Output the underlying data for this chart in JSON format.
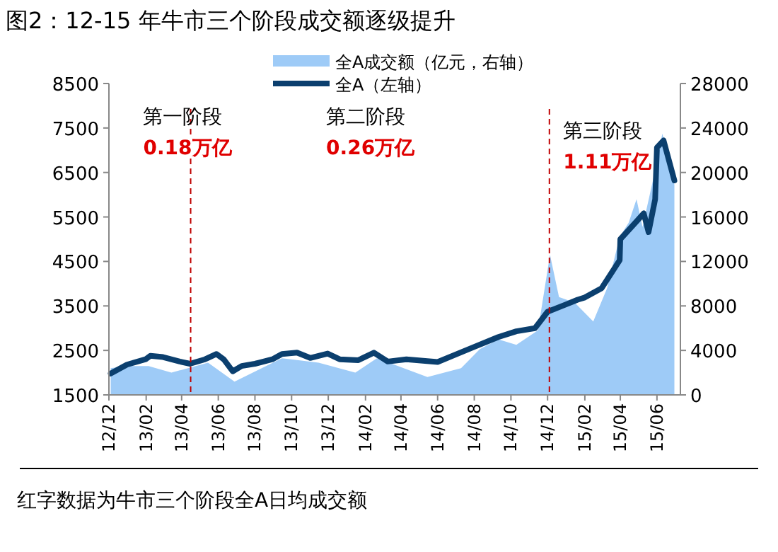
{
  "chart_data": {
    "type": "line",
    "title": "图2：12-15 年牛市三个阶段成交额逐级提升",
    "series": [
      {
        "name": "全A成交额（亿元，右轴）",
        "type": "area",
        "axis": "y2",
        "color": "#9ecbf7",
        "x": [
          "2012-12-04",
          "2012-12-31",
          "2013-02-05",
          "2013-03-15",
          "2013-05-15",
          "2013-06-28",
          "2013-09-15",
          "2013-11-15",
          "2014-01-15",
          "2014-02-20",
          "2014-05-15",
          "2014-07-10",
          "2014-08-10",
          "2014-09-10",
          "2014-10-10",
          "2014-11-15",
          "2014-12-05",
          "2014-12-20",
          "2015-01-15",
          "2015-02-15",
          "2015-03-10",
          "2015-03-31",
          "2015-04-15",
          "2015-04-28",
          "2015-05-08",
          "2015-05-27",
          "2015-06-10",
          "2015-06-30"
        ],
        "values": [
          2400,
          2600,
          2600,
          2000,
          2900,
          1200,
          3300,
          2900,
          2000,
          3300,
          1600,
          2400,
          4100,
          5000,
          4500,
          5800,
          12600,
          8800,
          8300,
          6600,
          9600,
          14200,
          15500,
          17600,
          15100,
          19700,
          23500,
          18900
        ]
      },
      {
        "name": "全A（左轴）",
        "color": "#0b3f6e",
        "x": [
          "2012-12-04",
          "2012-12-31",
          "2013-01-31",
          "2013-02-08",
          "2013-03-01",
          "2013-03-29",
          "2013-04-15",
          "2013-05-10",
          "2013-05-29",
          "2013-06-10",
          "2013-06-25",
          "2013-07-10",
          "2013-08-01",
          "2013-08-30",
          "2013-09-15",
          "2013-10-10",
          "2013-11-01",
          "2013-11-30",
          "2013-12-20",
          "2014-01-20",
          "2014-02-15",
          "2014-03-10",
          "2014-04-10",
          "2014-06-01",
          "2014-08-01",
          "2014-09-10",
          "2014-10-10",
          "2014-11-10",
          "2014-12-01",
          "2014-12-31",
          "2015-01-20",
          "2015-02-01",
          "2015-03-01",
          "2015-03-31",
          "2015-04-01",
          "2015-04-30",
          "2015-05-10",
          "2015-05-18",
          "2015-05-29",
          "2015-06-01",
          "2015-06-12",
          "2015-06-30"
        ],
        "values": [
          1980,
          2180,
          2300,
          2380,
          2350,
          2250,
          2200,
          2300,
          2420,
          2300,
          2030,
          2150,
          2200,
          2300,
          2420,
          2450,
          2330,
          2430,
          2300,
          2280,
          2450,
          2250,
          2300,
          2240,
          2580,
          2800,
          2930,
          3000,
          3370,
          3530,
          3640,
          3690,
          3900,
          4530,
          5000,
          5430,
          5580,
          5160,
          5900,
          7060,
          7220,
          6320
        ]
      }
    ],
    "xlim": [
      "2012-12-01",
      "2015-07-10"
    ],
    "xticks": [
      {
        "value": "2012-12-01",
        "label": "12/12"
      },
      {
        "value": "2013-02-01",
        "label": "13/02"
      },
      {
        "value": "2013-04-01",
        "label": "13/04"
      },
      {
        "value": "2013-06-01",
        "label": "13/06"
      },
      {
        "value": "2013-08-01",
        "label": "13/08"
      },
      {
        "value": "2013-10-01",
        "label": "13/10"
      },
      {
        "value": "2013-12-01",
        "label": "13/12"
      },
      {
        "value": "2014-02-01",
        "label": "14/02"
      },
      {
        "value": "2014-04-01",
        "label": "14/04"
      },
      {
        "value": "2014-06-01",
        "label": "14/06"
      },
      {
        "value": "2014-08-01",
        "label": "14/08"
      },
      {
        "value": "2014-10-01",
        "label": "14/10"
      },
      {
        "value": "2014-12-01",
        "label": "14/12"
      },
      {
        "value": "2015-02-01",
        "label": "15/02"
      },
      {
        "value": "2015-04-01",
        "label": "15/04"
      },
      {
        "value": "2015-06-01",
        "label": "15/06"
      }
    ],
    "ylim": [
      1500,
      8500
    ],
    "yticks": [
      1500,
      2500,
      3500,
      4500,
      5500,
      6500,
      7500,
      8500
    ],
    "y2lim": [
      0,
      28000
    ],
    "y2ticks": [
      0,
      4000,
      8000,
      12000,
      16000,
      20000,
      24000,
      28000
    ],
    "ref_lines": [
      {
        "axis": "x",
        "value": "2013-04-16",
        "color": "#c00000",
        "line_style": "dashed"
      },
      {
        "axis": "x",
        "value": "2014-12-04",
        "color": "#c00000",
        "line_style": "dashed"
      }
    ],
    "annotations": [
      "第一阶段",
      "0.18万亿",
      "第二阶段",
      "0.26万亿",
      "第三阶段",
      "1.11万亿",
      "红字数据为牛市三个阶段全A日均成交额"
    ],
    "legend": "top",
    "grid": false
  }
}
